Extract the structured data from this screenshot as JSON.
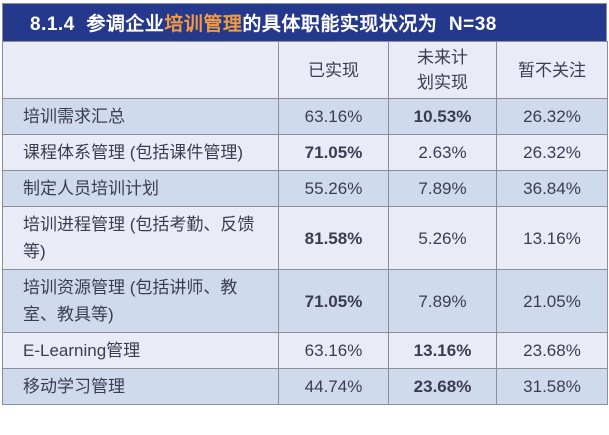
{
  "title": {
    "prefix": "8.1.4  参调企业",
    "highlight": "培训管理",
    "suffix": "的具体职能实现状况为  N=38"
  },
  "header": {
    "col_function": "",
    "col_realized": "已实现",
    "col_planned": "未来计划实现",
    "col_ignored": "暂不关注"
  },
  "rows": [
    {
      "label": "培训需求汇总",
      "values": [
        "63.16%",
        "10.53%",
        "26.32%"
      ],
      "bold": [
        false,
        true,
        false
      ]
    },
    {
      "label": "课程体系管理 (包括课件管理)",
      "values": [
        "71.05%",
        "2.63%",
        "26.32%"
      ],
      "bold": [
        true,
        false,
        false
      ]
    },
    {
      "label": "制定人员培训计划",
      "values": [
        "55.26%",
        "7.89%",
        "36.84%"
      ],
      "bold": [
        false,
        false,
        false
      ]
    },
    {
      "label": "培训进程管理 (包括考勤、反馈等)",
      "values": [
        "81.58%",
        "5.26%",
        "13.16%"
      ],
      "bold": [
        true,
        false,
        false
      ]
    },
    {
      "label": "培训资源管理 (包括讲师、教室、教具等)",
      "values": [
        "71.05%",
        "7.89%",
        "21.05%"
      ],
      "bold": [
        true,
        false,
        false
      ]
    },
    {
      "label": "E-Learning管理",
      "values": [
        "63.16%",
        "13.16%",
        "23.68%"
      ],
      "bold": [
        false,
        true,
        false
      ]
    },
    {
      "label": "移动学习管理",
      "values": [
        "44.74%",
        "23.68%",
        "31.58%"
      ],
      "bold": [
        false,
        true,
        false
      ]
    }
  ],
  "colors": {
    "title_bg": "#24388C",
    "title_text": "#FFFFFF",
    "title_highlight": "#F29B40",
    "row_dark_bg": "#CFDBEC",
    "row_light_bg": "#E9ECF6",
    "border": "#8B8D99",
    "text": "#3C3C50"
  },
  "chart_data": {
    "type": "table",
    "title": "8.1.4 参调企业培训管理的具体职能实现状况为 N=38",
    "sample_size_label": "N=38",
    "unit": "%",
    "columns": [
      "已实现",
      "未来计划实现",
      "暂不关注"
    ],
    "rows": [
      {
        "label": "培训需求汇总",
        "已实现": 63.16,
        "未来计划实现": 10.53,
        "暂不关注": 26.32
      },
      {
        "label": "课程体系管理 (包括课件管理)",
        "已实现": 71.05,
        "未来计划实现": 2.63,
        "暂不关注": 26.32
      },
      {
        "label": "制定人员培训计划",
        "已实现": 55.26,
        "未来计划实现": 7.89,
        "暂不关注": 36.84
      },
      {
        "label": "培训进程管理 (包括考勤、反馈等)",
        "已实现": 81.58,
        "未来计划实现": 5.26,
        "暂不关注": 13.16
      },
      {
        "label": "培训资源管理 (包括讲师、教室、教具等)",
        "已实现": 71.05,
        "未来计划实现": 7.89,
        "暂不关注": 21.05
      },
      {
        "label": "E-Learning管理",
        "已实现": 63.16,
        "未来计划实现": 13.16,
        "暂不关注": 23.68
      },
      {
        "label": "移动学习管理",
        "已实现": 44.74,
        "未来计划实现": 23.68,
        "暂不关注": 31.58
      }
    ]
  }
}
